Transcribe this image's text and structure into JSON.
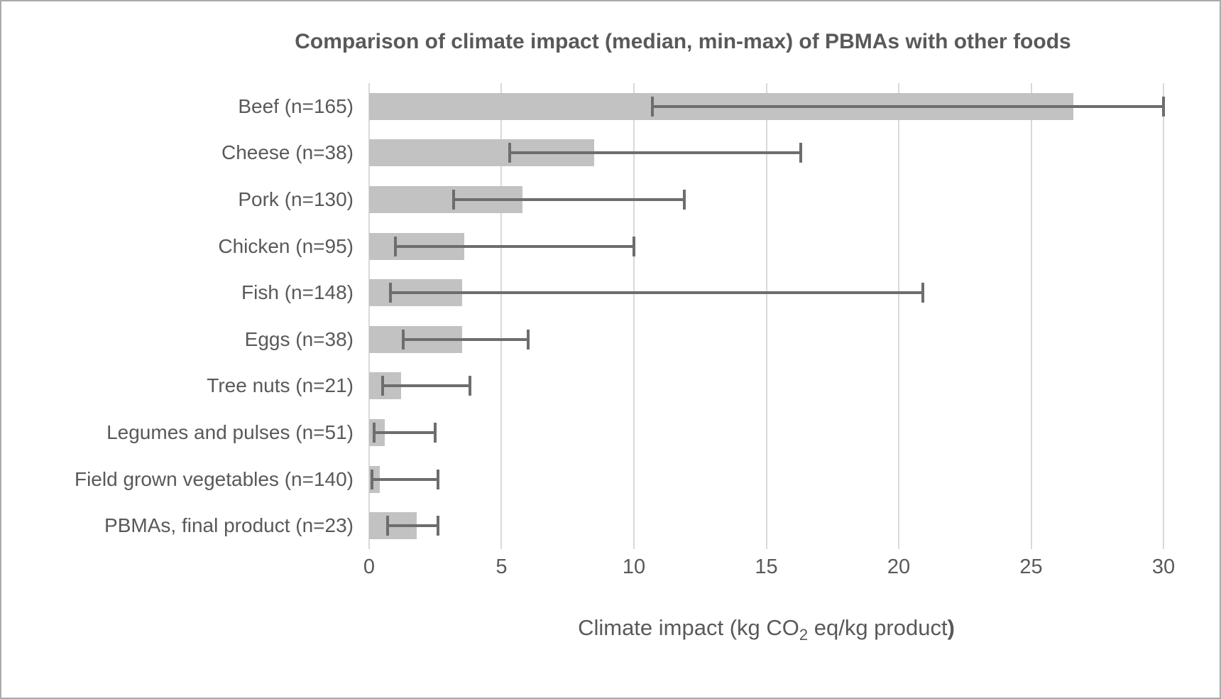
{
  "chart_data": {
    "type": "bar",
    "orientation": "horizontal",
    "title": "Comparison of climate impact (median, min-max) of PBMAs with other foods",
    "xlabel": "Climate impact (kg CO2 eq/kg product)",
    "xlabel_parts": {
      "prefix": "Climate impact (kg CO",
      "sub": "2",
      "suffix": " eq/kg product",
      "close": ")"
    },
    "ylabel": "",
    "xlim": [
      0,
      30
    ],
    "xticks": [
      0,
      5,
      10,
      15,
      20,
      25,
      30
    ],
    "grid": true,
    "legend": false,
    "categories": [
      "Beef (n=165)",
      "Cheese (n=38)",
      "Pork (n=130)",
      "Chicken (n=95)",
      "Fish (n=148)",
      "Eggs (n=38)",
      "Tree nuts (n=21)",
      "Legumes and pulses (n=51)",
      "Field grown vegetables (n=140)",
      "PBMAs, final product (n=23)"
    ],
    "series": [
      {
        "name": "median",
        "values": [
          26.6,
          8.5,
          5.8,
          3.6,
          3.5,
          3.5,
          1.2,
          0.6,
          0.4,
          1.8
        ]
      },
      {
        "name": "min",
        "values": [
          10.7,
          5.3,
          3.2,
          1.0,
          0.8,
          1.3,
          0.5,
          0.2,
          0.1,
          0.7
        ]
      },
      {
        "name": "max",
        "values": [
          30.0,
          16.3,
          11.9,
          10.0,
          20.9,
          6.0,
          3.8,
          2.5,
          2.6,
          2.6
        ]
      }
    ],
    "colors": {
      "bar": "#c2c2c2",
      "error_bar": "#6d6d6d",
      "gridline": "#d9d9d9",
      "text": "#595959"
    }
  }
}
